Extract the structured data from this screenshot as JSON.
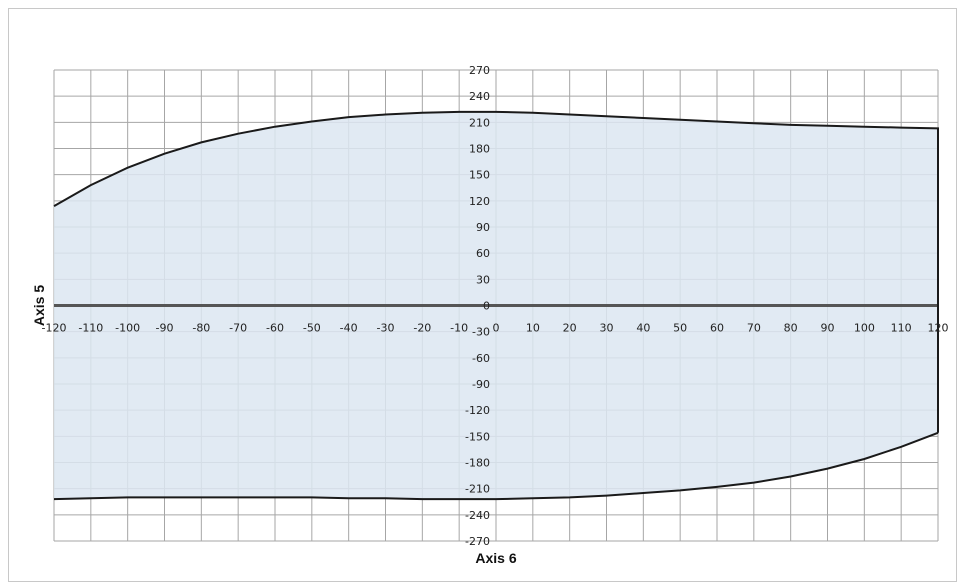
{
  "chart_data": {
    "type": "area",
    "title": "",
    "xlabel": "Axis 6",
    "ylabel": "Axis 5",
    "xlim": [
      -120,
      120
    ],
    "ylim": [
      -270,
      270
    ],
    "x_ticks": [
      -120,
      -110,
      -100,
      -90,
      -80,
      -70,
      -60,
      -50,
      -40,
      -30,
      -20,
      -10,
      0,
      10,
      20,
      30,
      40,
      50,
      60,
      70,
      80,
      90,
      100,
      110,
      120
    ],
    "y_ticks": [
      270,
      240,
      210,
      180,
      150,
      120,
      90,
      60,
      30,
      0,
      -30,
      -60,
      -90,
      -120,
      -150,
      -180,
      -210,
      -240,
      -270
    ],
    "grid": true,
    "series": [
      {
        "role": "upper-boundary",
        "x": [
          -120,
          -110,
          -100,
          -90,
          -80,
          -70,
          -60,
          -50,
          -40,
          -30,
          -20,
          -10,
          0,
          10,
          20,
          30,
          40,
          50,
          60,
          70,
          80,
          90,
          100,
          110,
          120
        ],
        "y": [
          114,
          138,
          158,
          174,
          187,
          197,
          205,
          211,
          216,
          219,
          221,
          222,
          222,
          221,
          219,
          217,
          215,
          213,
          211,
          209,
          207,
          206,
          205,
          204,
          203
        ]
      },
      {
        "role": "lower-boundary",
        "x": [
          -120,
          -110,
          -100,
          -90,
          -80,
          -70,
          -60,
          -50,
          -40,
          -30,
          -20,
          -10,
          0,
          10,
          20,
          30,
          40,
          50,
          60,
          70,
          80,
          90,
          100,
          110,
          120
        ],
        "y": [
          -222,
          -221,
          -220,
          -220,
          -220,
          -220,
          -220,
          -220,
          -221,
          -221,
          -222,
          -222,
          -222,
          -221,
          -220,
          -218,
          -215,
          -212,
          -208,
          -203,
          -196,
          -187,
          -176,
          -162,
          -146
        ]
      }
    ],
    "colors": {
      "fill": "#dce6f1",
      "outline": "#1a1a1a",
      "grid": "#a6a6a6",
      "zero_line": "#555555"
    }
  }
}
